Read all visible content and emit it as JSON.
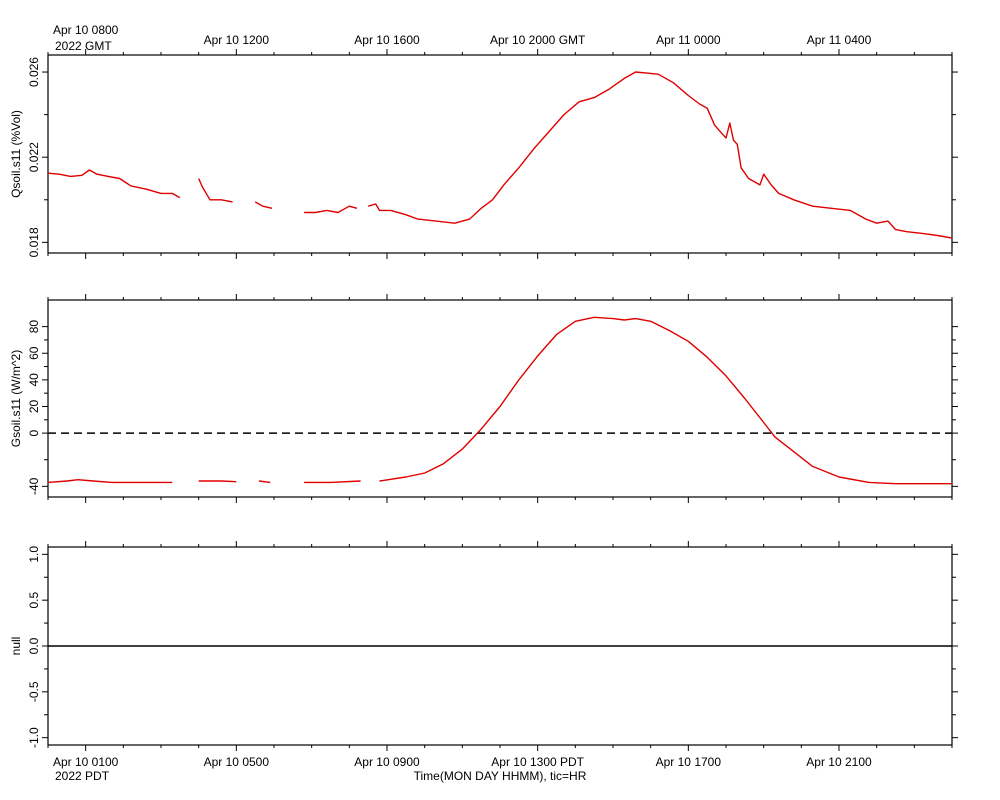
{
  "top_axis": {
    "ticks": [
      {
        "hours": 0,
        "label": "Apr 10 0800"
      },
      {
        "hours": 4,
        "label": "Apr 10 1200"
      },
      {
        "hours": 8,
        "label": "Apr 10 1600"
      },
      {
        "hours": 12,
        "label": "Apr 10 2000 GMT"
      },
      {
        "hours": 16,
        "label": "Apr 11 0000"
      },
      {
        "hours": 20,
        "label": "Apr 11 0400"
      }
    ],
    "year_label": "2022 GMT"
  },
  "bottom_axis": {
    "ticks": [
      {
        "hours": 0,
        "label": "Apr 10 0100"
      },
      {
        "hours": 4,
        "label": "Apr 10 0500"
      },
      {
        "hours": 8,
        "label": "Apr 10 0900"
      },
      {
        "hours": 12,
        "label": "Apr 10 1300 PDT"
      },
      {
        "hours": 16,
        "label": "Apr 10 1700"
      },
      {
        "hours": 20,
        "label": "Apr 10 2100"
      }
    ],
    "year_label": "2022 PDT",
    "title": "Time(MON DAY HHMM), tic=HR"
  },
  "chart_data": [
    {
      "type": "line",
      "ylabel": "Qsoil.s11 (%Vol)",
      "xlim": [
        -1.0,
        23.0
      ],
      "ylim": [
        0.0175,
        0.0268
      ],
      "yticks": [
        0.018,
        0.022,
        0.026
      ],
      "ytick_labels": [
        "0.018",
        "0.022",
        "0.026"
      ],
      "series_color": "#e00000",
      "segments": [
        [
          [
            -1.0,
            0.02125
          ],
          [
            -0.7,
            0.0212
          ],
          [
            -0.4,
            0.0211
          ],
          [
            -0.1,
            0.02115
          ],
          [
            0.1,
            0.0214
          ],
          [
            0.3,
            0.0212
          ],
          [
            0.6,
            0.0211
          ],
          [
            0.9,
            0.021
          ],
          [
            1.2,
            0.02065
          ],
          [
            1.6,
            0.0205
          ],
          [
            2.0,
            0.0203
          ],
          [
            2.3,
            0.0203
          ],
          [
            2.5,
            0.0201
          ]
        ],
        [
          [
            3.0,
            0.021
          ],
          [
            3.1,
            0.0206
          ],
          [
            3.3,
            0.02
          ],
          [
            3.6,
            0.02
          ],
          [
            3.9,
            0.0199
          ]
        ],
        [
          [
            4.5,
            0.0199
          ],
          [
            4.7,
            0.0197
          ],
          [
            4.95,
            0.0196
          ]
        ],
        [
          [
            5.8,
            0.0194
          ],
          [
            6.1,
            0.0194
          ],
          [
            6.4,
            0.0195
          ],
          [
            6.7,
            0.0194
          ],
          [
            7.0,
            0.0197
          ],
          [
            7.2,
            0.0196
          ]
        ],
        [
          [
            7.5,
            0.0197
          ],
          [
            7.7,
            0.0198
          ],
          [
            7.8,
            0.0195
          ],
          [
            8.1,
            0.0195
          ],
          [
            8.5,
            0.0193
          ],
          [
            8.8,
            0.0191
          ],
          [
            9.3,
            0.019
          ],
          [
            9.8,
            0.0189
          ],
          [
            10.2,
            0.0191
          ],
          [
            10.5,
            0.0196
          ],
          [
            10.8,
            0.02
          ],
          [
            11.1,
            0.0207
          ],
          [
            11.5,
            0.0215
          ],
          [
            11.9,
            0.0224
          ],
          [
            12.3,
            0.0232
          ],
          [
            12.7,
            0.024
          ],
          [
            13.1,
            0.0246
          ],
          [
            13.5,
            0.0248
          ],
          [
            13.9,
            0.0252
          ],
          [
            14.3,
            0.0257
          ],
          [
            14.6,
            0.026
          ],
          [
            14.9,
            0.02595
          ],
          [
            15.2,
            0.0259
          ],
          [
            15.6,
            0.0255
          ],
          [
            16.0,
            0.0249
          ],
          [
            16.3,
            0.0245
          ],
          [
            16.5,
            0.0243
          ],
          [
            16.7,
            0.0235
          ],
          [
            16.9,
            0.0231
          ],
          [
            17.0,
            0.0229
          ],
          [
            17.1,
            0.0236
          ],
          [
            17.2,
            0.0228
          ],
          [
            17.3,
            0.0226
          ],
          [
            17.4,
            0.0215
          ],
          [
            17.6,
            0.021
          ],
          [
            17.9,
            0.0207
          ],
          [
            18.0,
            0.0212
          ],
          [
            18.2,
            0.0207
          ],
          [
            18.4,
            0.0203
          ],
          [
            18.8,
            0.02
          ],
          [
            19.3,
            0.0197
          ],
          [
            19.8,
            0.0196
          ],
          [
            20.3,
            0.0195
          ],
          [
            20.7,
            0.0191
          ],
          [
            21.0,
            0.0189
          ],
          [
            21.3,
            0.019
          ],
          [
            21.5,
            0.0186
          ],
          [
            21.8,
            0.0185
          ],
          [
            22.3,
            0.0184
          ],
          [
            22.7,
            0.0183
          ],
          [
            23.0,
            0.0182
          ]
        ]
      ]
    },
    {
      "type": "line",
      "ylabel": "Gsoil.s11 (W/m^2)",
      "xlim": [
        -1.0,
        23.0
      ],
      "ylim": [
        -48,
        100
      ],
      "yticks": [
        -40,
        0,
        20,
        40,
        60,
        80
      ],
      "ytick_labels": [
        "-40",
        "0",
        "20",
        "40",
        "60",
        "80"
      ],
      "series_color": "#e00000",
      "zero_line": "dashed",
      "segments": [
        [
          [
            -1.0,
            -37
          ],
          [
            -0.5,
            -36
          ],
          [
            -0.2,
            -35
          ],
          [
            0.2,
            -36
          ],
          [
            0.7,
            -37
          ],
          [
            1.5,
            -37
          ],
          [
            2.3,
            -37
          ]
        ],
        [
          [
            3.0,
            -36
          ],
          [
            3.6,
            -36
          ],
          [
            4.0,
            -36.5
          ]
        ],
        [
          [
            4.6,
            -36
          ],
          [
            4.9,
            -37
          ]
        ],
        [
          [
            5.8,
            -37
          ],
          [
            6.5,
            -37
          ],
          [
            7.3,
            -36
          ]
        ],
        [
          [
            7.8,
            -36
          ],
          [
            8.5,
            -33
          ],
          [
            9.0,
            -30
          ],
          [
            9.5,
            -23
          ],
          [
            10.0,
            -12
          ],
          [
            10.5,
            3
          ],
          [
            11.0,
            20
          ],
          [
            11.5,
            40
          ],
          [
            12.0,
            58
          ],
          [
            12.5,
            74
          ],
          [
            13.0,
            84
          ],
          [
            13.5,
            87
          ],
          [
            14.0,
            86
          ],
          [
            14.3,
            85
          ],
          [
            14.6,
            86
          ],
          [
            15.0,
            84
          ],
          [
            15.5,
            77
          ],
          [
            16.0,
            69
          ],
          [
            16.5,
            57
          ],
          [
            17.0,
            43
          ],
          [
            17.5,
            26
          ],
          [
            18.0,
            8
          ],
          [
            18.3,
            -3
          ],
          [
            18.8,
            -14
          ],
          [
            19.3,
            -25
          ],
          [
            20.0,
            -33
          ],
          [
            20.8,
            -37
          ],
          [
            21.5,
            -38
          ],
          [
            22.3,
            -38
          ],
          [
            23.0,
            -38
          ]
        ]
      ]
    },
    {
      "type": "line",
      "ylabel": "null",
      "xlim": [
        -1.0,
        23.0
      ],
      "ylim": [
        -1.08,
        1.08
      ],
      "yticks": [
        -1.0,
        -0.5,
        0.0,
        0.5,
        1.0
      ],
      "ytick_labels": [
        "-1.0",
        "-0.5",
        "0.0",
        "0.5",
        "1.0"
      ],
      "series_color": "#000000",
      "segments": [
        [
          [
            -1.0,
            0.0
          ],
          [
            23.0,
            0.0
          ]
        ]
      ]
    }
  ]
}
